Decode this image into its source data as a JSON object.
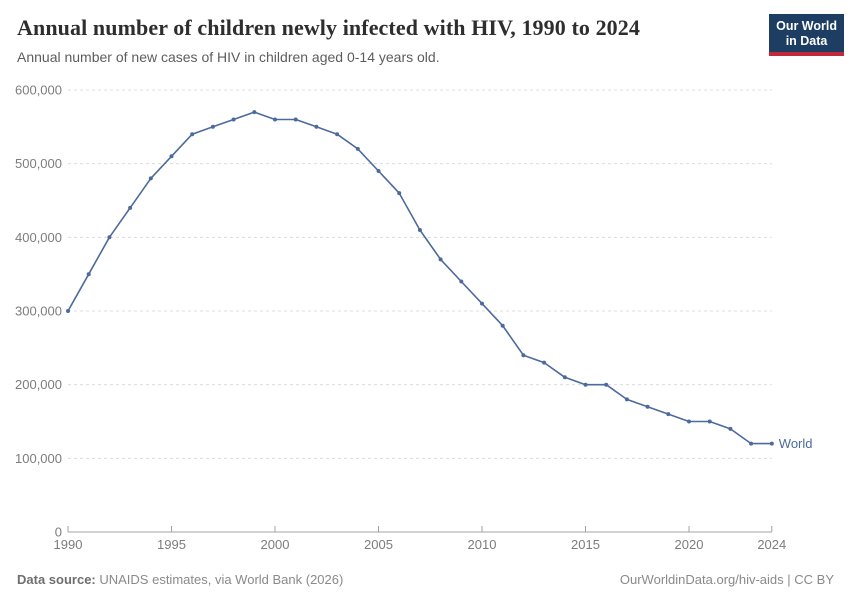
{
  "header": {
    "title": "Annual number of children newly infected with HIV, 1990 to 2024",
    "subtitle": "Annual number of new cases of HIV in children aged 0-14 years old.",
    "logo": {
      "line1": "Our World",
      "line2": "in Data"
    }
  },
  "chart_data": {
    "type": "line",
    "title": "Annual number of children newly infected with HIV, 1990 to 2024",
    "subtitle": "Annual number of new cases of HIV in children aged 0-14 years old.",
    "xlabel": "",
    "ylabel": "",
    "xlim": [
      1990,
      2024
    ],
    "ylim": [
      0,
      600000
    ],
    "grid": "horizontal-dashed",
    "legend_position": "end-of-line",
    "years": [
      1990,
      1991,
      1992,
      1993,
      1994,
      1995,
      1996,
      1997,
      1998,
      1999,
      2000,
      2001,
      2002,
      2003,
      2004,
      2005,
      2006,
      2007,
      2008,
      2009,
      2010,
      2011,
      2012,
      2013,
      2014,
      2015,
      2016,
      2017,
      2018,
      2019,
      2020,
      2021,
      2022,
      2023,
      2024
    ],
    "series": [
      {
        "name": "World",
        "color": "#4C6A9C",
        "values": [
          300000,
          350000,
          400000,
          440000,
          480000,
          510000,
          540000,
          550000,
          560000,
          570000,
          560000,
          560000,
          550000,
          540000,
          520000,
          490000,
          460000,
          410000,
          370000,
          340000,
          310000,
          280000,
          240000,
          230000,
          210000,
          200000,
          200000,
          180000,
          170000,
          160000,
          150000,
          150000,
          140000,
          120000,
          120000
        ]
      }
    ],
    "x_ticks": [
      1990,
      1995,
      2000,
      2005,
      2010,
      2015,
      2020,
      2024
    ],
    "y_ticks": [
      {
        "value": 0,
        "label": "0"
      },
      {
        "value": 100000,
        "label": "100,000"
      },
      {
        "value": 200000,
        "label": "200,000"
      },
      {
        "value": 300000,
        "label": "300,000"
      },
      {
        "value": 400000,
        "label": "400,000"
      },
      {
        "value": 500000,
        "label": "500,000"
      },
      {
        "value": 600000,
        "label": "600,000"
      }
    ]
  },
  "footer": {
    "source_label": "Data source:",
    "source_text": " UNAIDS estimates, via World Bank (2026)",
    "attribution": "OurWorldinData.org/hiv-aids | CC BY"
  },
  "colors": {
    "series_line": "#4C6A9C",
    "logo_background": "#1d3d63",
    "logo_underline": "#c0293c",
    "gridline": "#dcdcdc",
    "axis_line": "#a3a3a3",
    "tick_label": "#7d7d7d",
    "title_text": "#2e2e2e",
    "subtitle_text": "#5d5d5d",
    "footer_text": "#8a8a8a"
  }
}
